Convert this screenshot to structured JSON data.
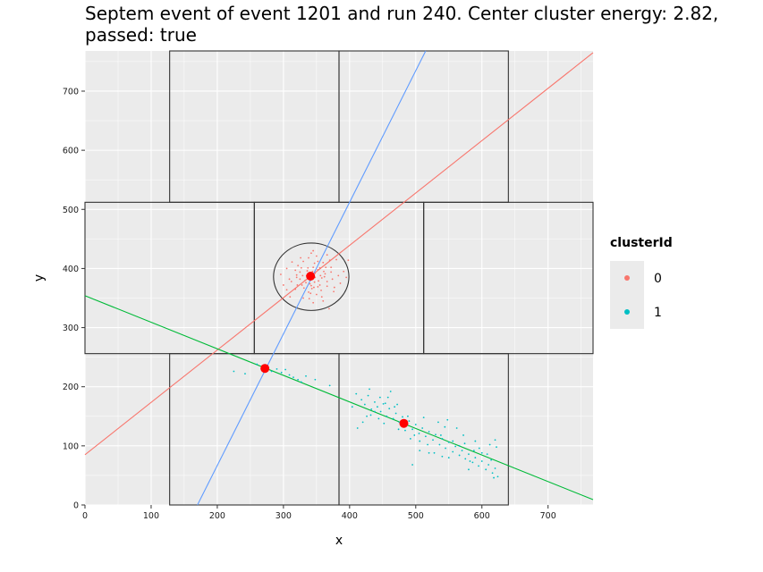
{
  "chart_data": {
    "type": "scatter",
    "title_lines": [
      "Septem event of event 1201 and run 240. Center cluster energy: 2.82,",
      "passed: true"
    ],
    "xlabel": "x",
    "ylabel": "y",
    "xlim": [
      0,
      768
    ],
    "ylim": [
      0,
      768
    ],
    "x_ticks": [
      0,
      100,
      200,
      300,
      400,
      500,
      600,
      700
    ],
    "y_ticks": [
      0,
      100,
      200,
      300,
      400,
      500,
      600,
      700
    ],
    "grid": true,
    "background": "#EBEBEB",
    "legend": {
      "title": "clusterId",
      "position": "right",
      "entries": [
        {
          "label": "0",
          "color": "#F8766D"
        },
        {
          "label": "1",
          "color": "#00BFC4"
        }
      ]
    },
    "chip_outlines": [
      {
        "x0": 128,
        "x1": 384,
        "y0": 512,
        "y1": 768
      },
      {
        "x0": 384,
        "x1": 640,
        "y0": 512,
        "y1": 768
      },
      {
        "x0": 0,
        "x1": 256,
        "y0": 256,
        "y1": 512
      },
      {
        "x0": 256,
        "x1": 512,
        "y0": 256,
        "y1": 512
      },
      {
        "x0": 512,
        "x1": 768,
        "y0": 256,
        "y1": 512
      },
      {
        "x0": 128,
        "x1": 384,
        "y0": 0,
        "y1": 256
      },
      {
        "x0": 384,
        "x1": 640,
        "y0": 0,
        "y1": 256
      }
    ],
    "center_circle": {
      "cx": 342,
      "cy": 386,
      "r": 57
    },
    "lines": [
      {
        "name": "cluster-0-axis",
        "color": "#F8766D",
        "points": [
          [
            0,
            85
          ],
          [
            768,
            765
          ]
        ]
      },
      {
        "name": "blue-line",
        "color": "#619CFF",
        "points": [
          [
            170,
            0
          ],
          [
            515,
            768
          ]
        ]
      },
      {
        "name": "cluster-1-axis",
        "color": "#00BA38",
        "points": [
          [
            0,
            354
          ],
          [
            768,
            9
          ]
        ]
      }
    ],
    "centers": [
      {
        "x": 341,
        "y": 387,
        "color": "#FF0000"
      },
      {
        "x": 272,
        "y": 231,
        "color": "#FF0000"
      },
      {
        "x": 482,
        "y": 138,
        "color": "#FF0000"
      }
    ],
    "series": [
      {
        "name": "0",
        "color": "#F8766D",
        "points": [
          [
            342,
            426
          ],
          [
            338,
            418
          ],
          [
            350,
            421
          ],
          [
            360,
            410
          ],
          [
            330,
            412
          ],
          [
            345,
            402
          ],
          [
            352,
            398
          ],
          [
            336,
            396
          ],
          [
            348,
            392
          ],
          [
            325,
            394
          ],
          [
            356,
            388
          ],
          [
            341,
            382
          ],
          [
            333,
            380
          ],
          [
            362,
            386
          ],
          [
            347,
            377
          ],
          [
            320,
            385
          ],
          [
            328,
            372
          ],
          [
            355,
            372
          ],
          [
            343,
            366
          ],
          [
            366,
            378
          ],
          [
            312,
            378
          ],
          [
            372,
            394
          ],
          [
            338,
            360
          ],
          [
            350,
            356
          ],
          [
            305,
            364
          ],
          [
            377,
            368
          ],
          [
            364,
            402
          ],
          [
            322,
            405
          ],
          [
            391,
            395
          ],
          [
            296,
            390
          ],
          [
            380,
            415
          ],
          [
            345,
            342
          ],
          [
            369,
            332
          ],
          [
            310,
            352
          ],
          [
            398,
            414
          ],
          [
            358,
            384
          ],
          [
            335,
            388
          ],
          [
            344,
            395
          ],
          [
            329,
            388
          ],
          [
            353,
            379
          ],
          [
            340,
            374
          ],
          [
            361,
            395
          ],
          [
            318,
            397
          ],
          [
            374,
            382
          ],
          [
            347,
            409
          ],
          [
            331,
            367
          ],
          [
            357,
            363
          ],
          [
            325,
            382
          ],
          [
            366,
            370
          ],
          [
            348,
            385
          ],
          [
            337,
            401
          ],
          [
            352,
            412
          ],
          [
            326,
            418
          ],
          [
            342,
            371
          ],
          [
            318,
            365
          ],
          [
            372,
            402
          ],
          [
            386,
            375
          ],
          [
            300,
            372
          ],
          [
            339,
            349
          ],
          [
            360,
            345
          ],
          [
            313,
            411
          ],
          [
            376,
            361
          ],
          [
            355,
            401
          ],
          [
            334,
            376
          ],
          [
            346,
            368
          ],
          [
            327,
            401
          ],
          [
            363,
            391
          ],
          [
            320,
            389
          ],
          [
            352,
            369
          ],
          [
            341,
            358
          ],
          [
            370,
            414
          ],
          [
            309,
            382
          ],
          [
            383,
            388
          ],
          [
            330,
            350
          ],
          [
            358,
            352
          ],
          [
            321,
            372
          ],
          [
            345,
            430
          ],
          [
            395,
            385
          ],
          [
            305,
            400
          ],
          [
            366,
            423
          ]
        ]
      },
      {
        "name": "1",
        "color": "#00BFC4",
        "points": [
          [
            225,
            226
          ],
          [
            242,
            222
          ],
          [
            260,
            238
          ],
          [
            268,
            228
          ],
          [
            275,
            235
          ],
          [
            282,
            226
          ],
          [
            290,
            230
          ],
          [
            297,
            224
          ],
          [
            303,
            229
          ],
          [
            309,
            220
          ],
          [
            315,
            216
          ],
          [
            322,
            212
          ],
          [
            327,
            208
          ],
          [
            334,
            218
          ],
          [
            348,
            212
          ],
          [
            370,
            202
          ],
          [
            410,
            188
          ],
          [
            418,
            178
          ],
          [
            423,
            170
          ],
          [
            428,
            185
          ],
          [
            433,
            162
          ],
          [
            438,
            174
          ],
          [
            442,
            166
          ],
          [
            447,
            158
          ],
          [
            451,
            171
          ],
          [
            456,
            150
          ],
          [
            460,
            163
          ],
          [
            466,
            146
          ],
          [
            470,
            155
          ],
          [
            475,
            140
          ],
          [
            480,
            149
          ],
          [
            485,
            134
          ],
          [
            490,
            142
          ],
          [
            495,
            128
          ],
          [
            500,
            136
          ],
          [
            505,
            121
          ],
          [
            510,
            130
          ],
          [
            515,
            116
          ],
          [
            520,
            124
          ],
          [
            526,
            110
          ],
          [
            530,
            119
          ],
          [
            536,
            102
          ],
          [
            540,
            112
          ],
          [
            545,
            96
          ],
          [
            550,
            106
          ],
          [
            556,
            90
          ],
          [
            560,
            99
          ],
          [
            566,
            84
          ],
          [
            570,
            92
          ],
          [
            575,
            78
          ],
          [
            580,
            86
          ],
          [
            586,
            72
          ],
          [
            590,
            80
          ],
          [
            595,
            66
          ],
          [
            600,
            74
          ],
          [
            606,
            60
          ],
          [
            610,
            68
          ],
          [
            616,
            54
          ],
          [
            620,
            62
          ],
          [
            624,
            48
          ],
          [
            430,
            196
          ],
          [
            446,
            182
          ],
          [
            462,
            192
          ],
          [
            412,
            130
          ],
          [
            420,
            140
          ],
          [
            432,
            152
          ],
          [
            452,
            138
          ],
          [
            468,
            166
          ],
          [
            484,
            126
          ],
          [
            498,
            118
          ],
          [
            512,
            148
          ],
          [
            528,
            88
          ],
          [
            544,
            132
          ],
          [
            556,
            108
          ],
          [
            572,
            118
          ],
          [
            588,
            92
          ],
          [
            600,
            88
          ],
          [
            612,
            102
          ],
          [
            622,
            98
          ],
          [
            438,
            158
          ],
          [
            454,
            172
          ],
          [
            474,
            128
          ],
          [
            492,
            112
          ],
          [
            518,
            102
          ],
          [
            534,
            140
          ],
          [
            550,
            80
          ],
          [
            566,
            100
          ],
          [
            582,
            74
          ],
          [
            596,
            96
          ],
          [
            614,
            76
          ],
          [
            404,
            166
          ],
          [
            426,
            150
          ],
          [
            444,
            146
          ],
          [
            458,
            182
          ],
          [
            472,
            170
          ],
          [
            488,
            150
          ],
          [
            506,
            108
          ],
          [
            520,
            88
          ],
          [
            538,
            118
          ],
          [
            548,
            144
          ],
          [
            562,
            130
          ],
          [
            574,
            104
          ],
          [
            590,
            108
          ],
          [
            608,
            86
          ],
          [
            620,
            110
          ],
          [
            495,
            68
          ],
          [
            540,
            82
          ],
          [
            580,
            60
          ],
          [
            618,
            46
          ],
          [
            506,
            92
          ]
        ]
      }
    ]
  }
}
